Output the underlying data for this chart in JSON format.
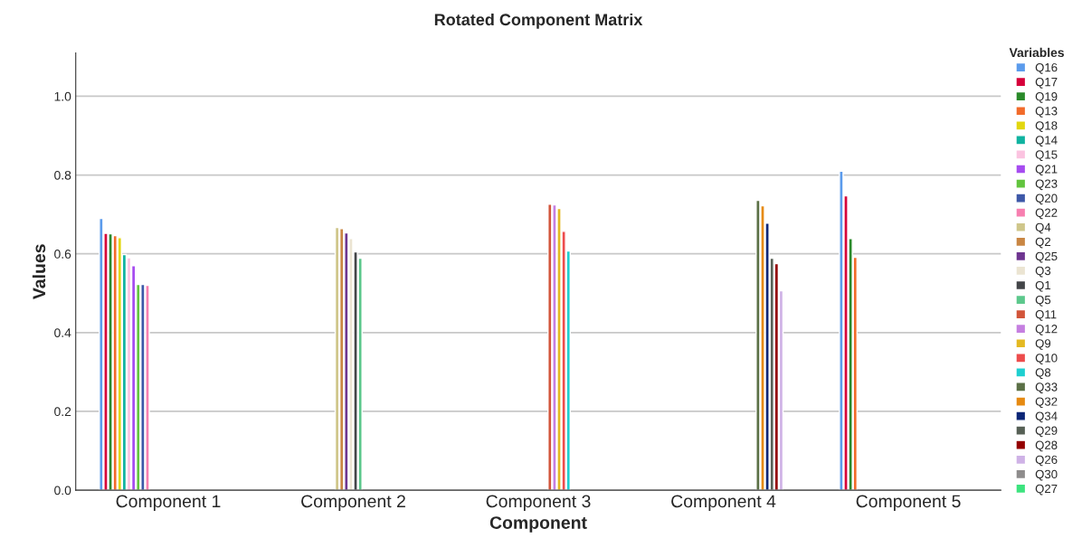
{
  "chart_data": {
    "type": "bar",
    "title": "Rotated Component Matrix",
    "xlabel": "Component",
    "ylabel": "Values",
    "legend_title": "Variables",
    "legend": "right",
    "grid": "y",
    "categories": [
      "Component 1",
      "Component 2",
      "Component 3",
      "Component 4",
      "Component 5"
    ],
    "ylim": [
      0,
      1.11
    ],
    "yticks": [
      {
        "value": 0,
        "label": "0.0"
      },
      0.2,
      0.4,
      0.6,
      0.8,
      {
        "value": 1,
        "label": "1.0"
      }
    ],
    "series": [
      {
        "name": "Q16",
        "color": "#5b9bec",
        "values": [
          0.69,
          null,
          null,
          null,
          0.81
        ]
      },
      {
        "name": "Q17",
        "color": "#d6003a",
        "values": [
          0.652,
          null,
          null,
          null,
          0.747
        ]
      },
      {
        "name": "Q19",
        "color": "#2a8a2a",
        "values": [
          0.651,
          null,
          null,
          null,
          0.639
        ]
      },
      {
        "name": "Q13",
        "color": "#f26b2a",
        "values": [
          0.646,
          null,
          null,
          null,
          0.591
        ]
      },
      {
        "name": "Q18",
        "color": "#e2d70f",
        "values": [
          0.641,
          null,
          null,
          null,
          null
        ]
      },
      {
        "name": "Q14",
        "color": "#10b3a0",
        "values": [
          0.598,
          null,
          null,
          null,
          null
        ]
      },
      {
        "name": "Q15",
        "color": "#fbc3e0",
        "values": [
          0.59,
          null,
          null,
          null,
          null
        ]
      },
      {
        "name": "Q21",
        "color": "#a64cf0",
        "values": [
          0.57,
          null,
          null,
          null,
          null
        ]
      },
      {
        "name": "Q23",
        "color": "#62c43e",
        "values": [
          0.522,
          null,
          null,
          null,
          null
        ]
      },
      {
        "name": "Q20",
        "color": "#3d58a8",
        "values": [
          0.522,
          null,
          null,
          null,
          null
        ]
      },
      {
        "name": "Q22",
        "color": "#f77fb0",
        "values": [
          0.52,
          null,
          null,
          null,
          null
        ]
      },
      {
        "name": "Q4",
        "color": "#cfc68a",
        "values": [
          null,
          0.667,
          null,
          null,
          null
        ]
      },
      {
        "name": "Q2",
        "color": "#c98643",
        "values": [
          null,
          0.664,
          null,
          null,
          null
        ]
      },
      {
        "name": "Q25",
        "color": "#6e3590",
        "values": [
          null,
          0.653,
          null,
          null,
          null
        ]
      },
      {
        "name": "Q3",
        "color": "#ebe4d2",
        "values": [
          null,
          0.639,
          null,
          null,
          null
        ]
      },
      {
        "name": "Q1",
        "color": "#434548",
        "values": [
          null,
          0.605,
          null,
          null,
          null
        ]
      },
      {
        "name": "Q5",
        "color": "#5cc88c",
        "values": [
          null,
          0.589,
          null,
          null,
          null
        ]
      },
      {
        "name": "Q11",
        "color": "#d2553a",
        "values": [
          null,
          null,
          0.726,
          null,
          null
        ]
      },
      {
        "name": "Q12",
        "color": "#c57fe0",
        "values": [
          null,
          null,
          0.724,
          null,
          null
        ]
      },
      {
        "name": "Q9",
        "color": "#e4b922",
        "values": [
          null,
          null,
          0.715,
          null,
          null
        ]
      },
      {
        "name": "Q10",
        "color": "#ed4c4c",
        "values": [
          null,
          null,
          0.657,
          null,
          null
        ]
      },
      {
        "name": "Q8",
        "color": "#1fcfd0",
        "values": [
          null,
          null,
          0.607,
          null,
          null
        ]
      },
      {
        "name": "Q33",
        "color": "#5b7046",
        "values": [
          null,
          null,
          null,
          0.736,
          null
        ]
      },
      {
        "name": "Q32",
        "color": "#e68a12",
        "values": [
          null,
          null,
          null,
          0.722,
          null
        ]
      },
      {
        "name": "Q34",
        "color": "#0c2677",
        "values": [
          null,
          null,
          null,
          0.678,
          null
        ]
      },
      {
        "name": "Q29",
        "color": "#566055",
        "values": [
          null,
          null,
          null,
          0.589,
          null
        ]
      },
      {
        "name": "Q28",
        "color": "#940000",
        "values": [
          null,
          null,
          null,
          0.575,
          null
        ]
      },
      {
        "name": "Q26",
        "color": "#cfb2e6",
        "values": [
          null,
          null,
          null,
          0.506,
          null
        ]
      },
      {
        "name": "Q30",
        "color": "#8e8c8c",
        "values": [
          null,
          null,
          null,
          null,
          null
        ]
      },
      {
        "name": "Q27",
        "color": "#3ce37e",
        "values": [
          null,
          null,
          null,
          null,
          null
        ]
      }
    ]
  }
}
